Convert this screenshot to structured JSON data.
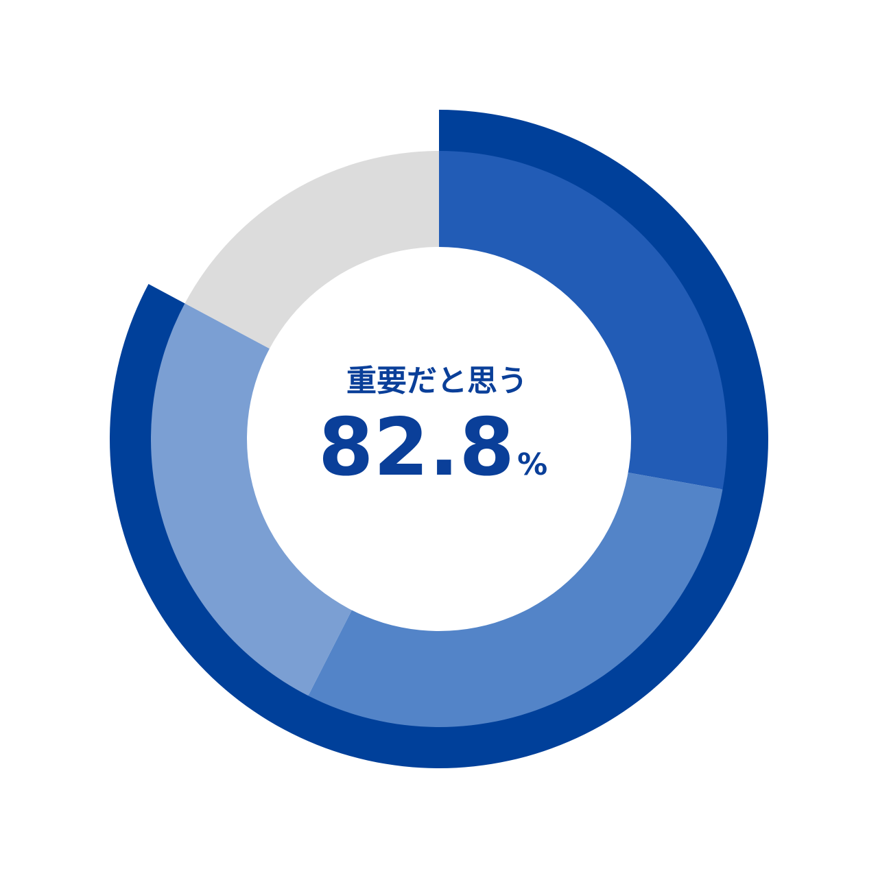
{
  "chart_data": {
    "type": "pie",
    "style": "donut",
    "segments": [
      {
        "value": 27.8,
        "color": "#225cb6"
      },
      {
        "value": 29.7,
        "color": "#5384c8"
      },
      {
        "value": 25.3,
        "color": "#7b9fd3"
      },
      {
        "value": 17.2,
        "color": "#dcdcdc"
      }
    ],
    "highlight": {
      "label": "重要だと思う",
      "value": 82.8,
      "value_text": "82.8",
      "unit": "%",
      "color": "#00409a"
    }
  }
}
